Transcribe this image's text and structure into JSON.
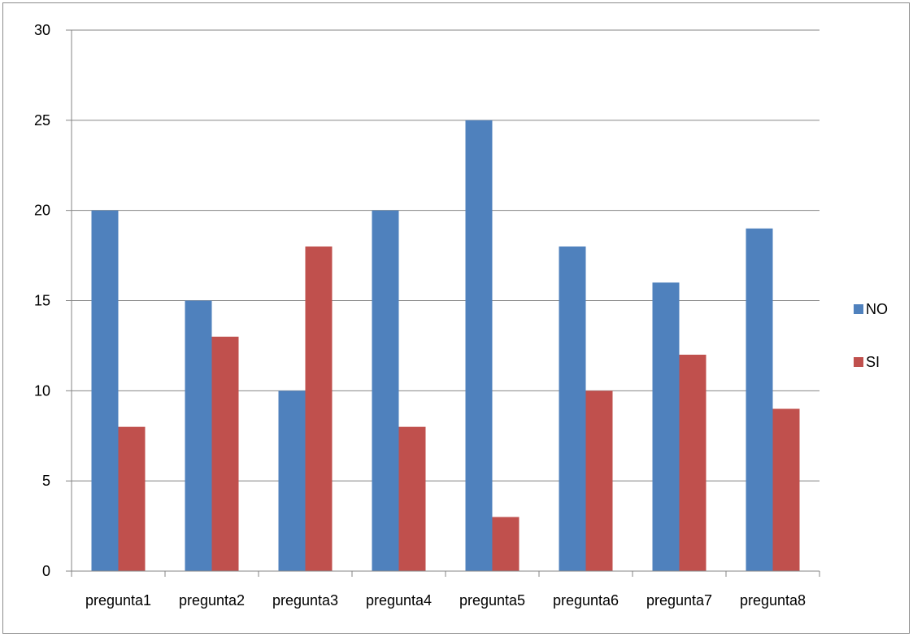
{
  "chart_data": {
    "type": "bar",
    "categories": [
      "pregunta1",
      "pregunta2",
      "pregunta3",
      "pregunta4",
      "pregunta5",
      "pregunta6",
      "pregunta7",
      "pregunta8"
    ],
    "series": [
      {
        "name": "NO",
        "values": [
          20,
          15,
          10,
          20,
          25,
          18,
          16,
          19
        ],
        "color": "#4F81BD"
      },
      {
        "name": "SI",
        "values": [
          8,
          13,
          18,
          8,
          3,
          10,
          12,
          9
        ],
        "color": "#C0504D"
      }
    ],
    "ylim": [
      0,
      30
    ],
    "yticks": [
      0,
      5,
      10,
      15,
      20,
      25,
      30
    ],
    "grid": true,
    "legend_position": "right",
    "title": "",
    "xlabel": "",
    "ylabel": ""
  }
}
